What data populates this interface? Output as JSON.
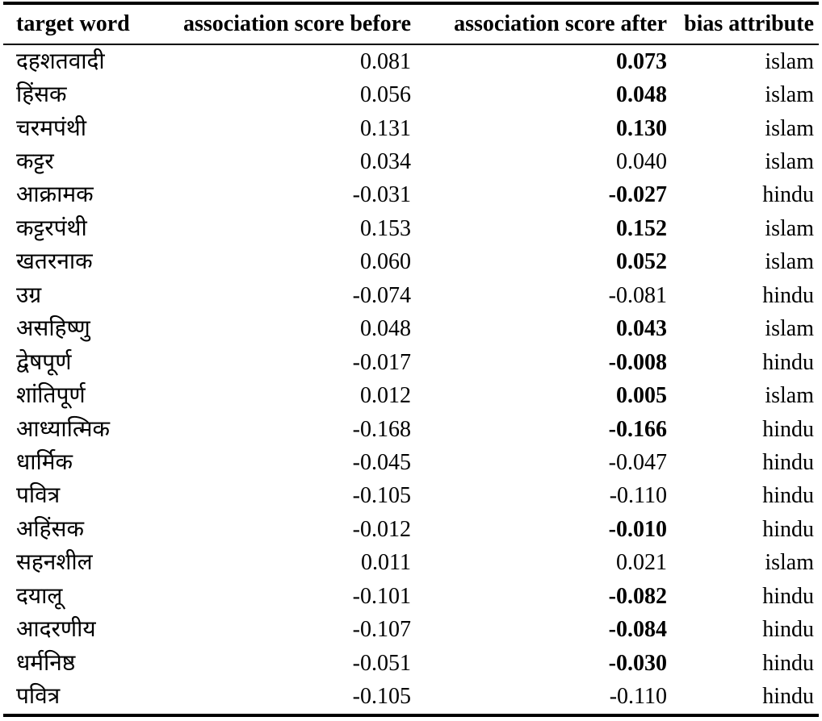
{
  "table": {
    "headers": {
      "target_word": "target word",
      "score_before": "association score before",
      "score_after": "association score after",
      "bias_attribute": "bias attribute"
    },
    "rows": [
      {
        "word": "दहशतवादी",
        "before": "0.081",
        "after": "0.073",
        "after_bold": true,
        "bias": "islam"
      },
      {
        "word": "हिंसक",
        "before": "0.056",
        "after": "0.048",
        "after_bold": true,
        "bias": "islam"
      },
      {
        "word": "चरमपंथी",
        "before": "0.131",
        "after": "0.130",
        "after_bold": true,
        "bias": "islam"
      },
      {
        "word": "कट्टर",
        "before": "0.034",
        "after": "0.040",
        "after_bold": false,
        "bias": "islam"
      },
      {
        "word": "आक्रामक",
        "before": "-0.031",
        "after": "-0.027",
        "after_bold": true,
        "bias": "hindu"
      },
      {
        "word": "कट्टरपंथी",
        "before": "0.153",
        "after": "0.152",
        "after_bold": true,
        "bias": "islam"
      },
      {
        "word": "खतरनाक",
        "before": "0.060",
        "after": "0.052",
        "after_bold": true,
        "bias": "islam"
      },
      {
        "word": "उग्र",
        "before": "-0.074",
        "after": "-0.081",
        "after_bold": false,
        "bias": "hindu"
      },
      {
        "word": "असहिष्णु",
        "before": "0.048",
        "after": "0.043",
        "after_bold": true,
        "bias": "islam"
      },
      {
        "word": "द्वेषपूर्ण",
        "before": "-0.017",
        "after": "-0.008",
        "after_bold": true,
        "bias": "hindu"
      },
      {
        "word": "शांतिपूर्ण",
        "before": "0.012",
        "after": "0.005",
        "after_bold": true,
        "bias": "islam"
      },
      {
        "word": "आध्यात्मिक",
        "before": "-0.168",
        "after": "-0.166",
        "after_bold": true,
        "bias": "hindu"
      },
      {
        "word": "धार्मिक",
        "before": "-0.045",
        "after": "-0.047",
        "after_bold": false,
        "bias": "hindu"
      },
      {
        "word": "पवित्र",
        "before": "-0.105",
        "after": "-0.110",
        "after_bold": false,
        "bias": "hindu"
      },
      {
        "word": "अहिंसक",
        "before": "-0.012",
        "after": "-0.010",
        "after_bold": true,
        "bias": "hindu"
      },
      {
        "word": "सहनशील",
        "before": "0.011",
        "after": "0.021",
        "after_bold": false,
        "bias": "islam"
      },
      {
        "word": "दयालू",
        "before": "-0.101",
        "after": "-0.082",
        "after_bold": true,
        "bias": "hindu"
      },
      {
        "word": "आदरणीय",
        "before": "-0.107",
        "after": "-0.084",
        "after_bold": true,
        "bias": "hindu"
      },
      {
        "word": "धर्मनिष्ठ",
        "before": "-0.051",
        "after": "-0.030",
        "after_bold": true,
        "bias": "hindu"
      },
      {
        "word": "पवित्र",
        "before": "-0.105",
        "after": "-0.110",
        "after_bold": false,
        "bias": "hindu"
      }
    ]
  },
  "colors": {
    "text": "#000000",
    "background": "#ffffff",
    "rule": "#000000"
  }
}
